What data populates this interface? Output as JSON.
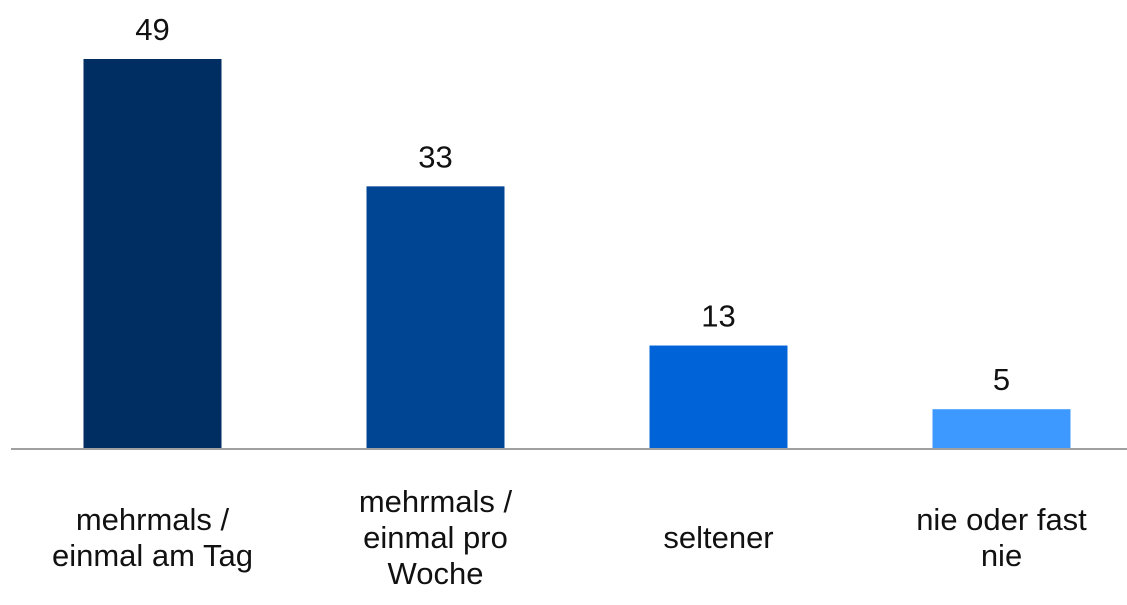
{
  "chart_data": {
    "type": "bar",
    "categories": [
      [
        "mehrmals /",
        "einmal am Tag"
      ],
      [
        "mehrmals /",
        "einmal pro",
        "Woche"
      ],
      [
        "seltener"
      ],
      [
        "nie oder fast",
        "nie"
      ]
    ],
    "values": [
      49,
      33,
      13,
      5
    ],
    "colors": [
      "#002d62",
      "#004494",
      "#0064d8",
      "#3d99ff"
    ],
    "axis_color": "#a0a0a0",
    "ylim": [
      0,
      49
    ],
    "grid": false,
    "legend": "none",
    "title": "",
    "xlabel": "",
    "ylabel": ""
  }
}
